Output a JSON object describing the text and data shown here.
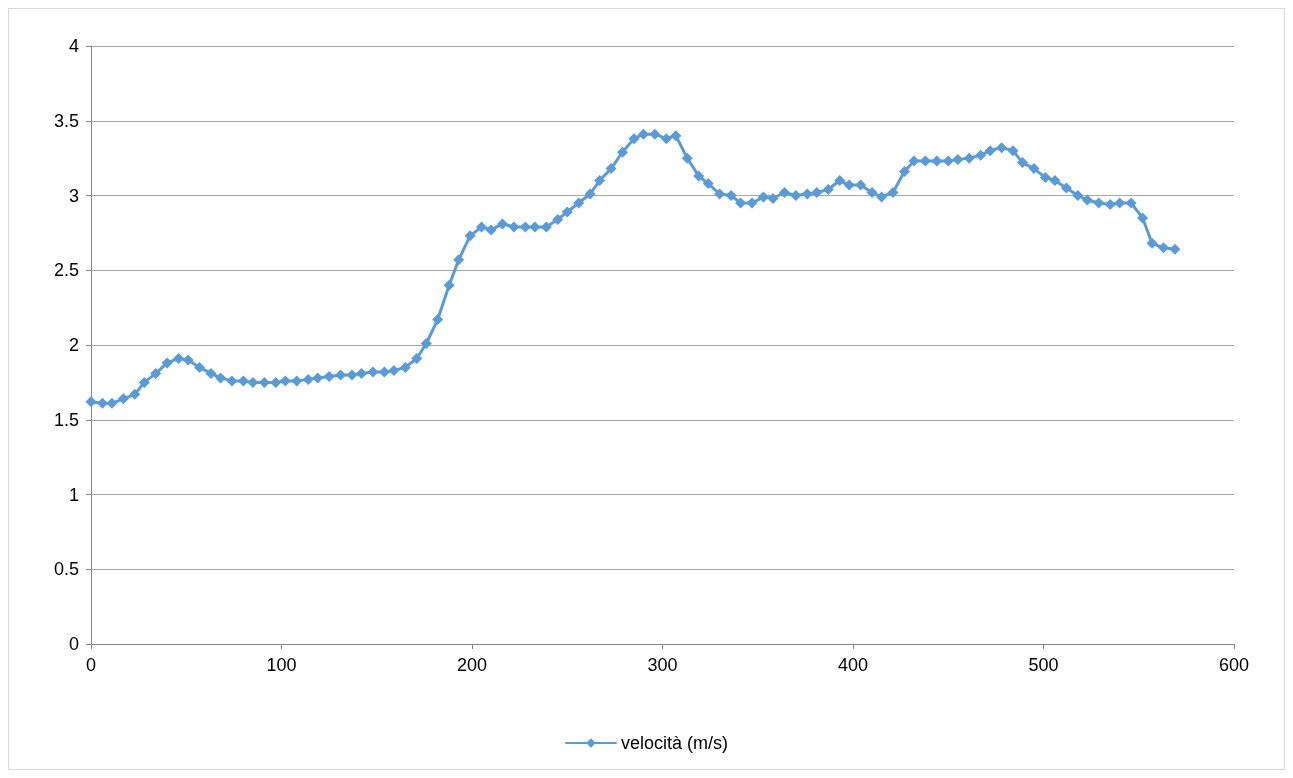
{
  "chart_data": {
    "type": "line",
    "x": [
      0,
      6,
      11,
      17,
      23,
      28,
      34,
      40,
      46,
      51,
      57,
      63,
      68,
      74,
      80,
      85,
      91,
      97,
      102,
      108,
      114,
      119,
      125,
      131,
      137,
      142,
      148,
      154,
      159,
      165,
      171,
      176,
      182,
      188,
      193,
      199,
      205,
      210,
      216,
      222,
      228,
      233,
      239,
      245,
      250,
      256,
      262,
      267,
      273,
      279,
      285,
      290,
      296,
      302,
      307,
      313,
      319,
      324,
      330,
      336,
      341,
      347,
      353,
      358,
      364,
      370,
      376,
      381,
      387,
      393,
      398,
      404,
      410,
      415,
      421,
      427,
      432,
      438,
      444,
      450,
      455,
      461,
      467,
      472,
      478,
      484,
      489,
      495,
      501,
      506,
      512,
      518,
      523,
      529,
      535,
      540,
      546,
      552,
      557,
      563,
      569
    ],
    "series": [
      {
        "name": "velocità (m/s)",
        "color": "#5b9bd5",
        "values": [
          1.62,
          1.61,
          1.61,
          1.64,
          1.67,
          1.75,
          1.81,
          1.88,
          1.91,
          1.9,
          1.85,
          1.81,
          1.78,
          1.76,
          1.76,
          1.75,
          1.75,
          1.75,
          1.76,
          1.76,
          1.77,
          1.78,
          1.79,
          1.8,
          1.8,
          1.81,
          1.82,
          1.82,
          1.83,
          1.85,
          1.91,
          2.01,
          2.17,
          2.4,
          2.57,
          2.73,
          2.79,
          2.77,
          2.81,
          2.79,
          2.79,
          2.79,
          2.79,
          2.84,
          2.89,
          2.95,
          3.01,
          3.1,
          3.18,
          3.29,
          3.38,
          3.41,
          3.41,
          3.38,
          3.4,
          3.25,
          3.13,
          3.08,
          3.01,
          3.0,
          2.95,
          2.95,
          2.99,
          2.98,
          3.02,
          3.0,
          3.01,
          3.02,
          3.04,
          3.1,
          3.07,
          3.07,
          3.02,
          2.99,
          3.02,
          3.16,
          3.23,
          3.23,
          3.23,
          3.23,
          3.24,
          3.25,
          3.27,
          3.3,
          3.32,
          3.3,
          3.22,
          3.18,
          3.12,
          3.1,
          3.05,
          3.0,
          2.97,
          2.95,
          2.94,
          2.95,
          2.95,
          2.85,
          2.68,
          2.65,
          2.64
        ]
      }
    ],
    "xlim": [
      0,
      600
    ],
    "xticks": [
      0,
      100,
      200,
      300,
      400,
      500,
      600
    ],
    "ylim": [
      0,
      4
    ],
    "yticks": [
      0,
      0.5,
      1,
      1.5,
      2,
      2.5,
      3,
      3.5,
      4
    ],
    "grid": "y",
    "legend": "bottom",
    "marker": "diamond",
    "line_style": "solid"
  }
}
